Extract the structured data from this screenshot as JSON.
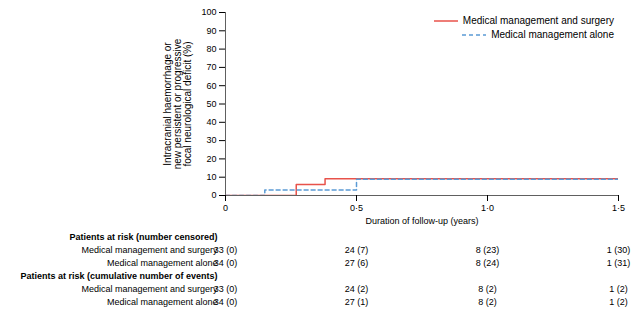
{
  "chart_data": {
    "type": "line",
    "xlabel": "Duration of follow-up (years)",
    "ylabel": "Intracranial haemorrhage or\nnew persistent or progressive\nfocal neurological deficit (%)",
    "xlim": [
      0,
      1.5
    ],
    "ylim": [
      0,
      100
    ],
    "xticks": [
      0,
      {
        "value": 0.5,
        "label": "0·5"
      },
      {
        "value": 1.0,
        "label": "1·0"
      },
      {
        "value": 1.5,
        "label": "1·5"
      }
    ],
    "yticks": [
      0,
      10,
      20,
      30,
      40,
      50,
      60,
      70,
      80,
      90,
      100
    ],
    "grid": false,
    "legend": "upper right",
    "series": [
      {
        "name": "Medical management and surgery",
        "color": "#e8524a",
        "line_style": "solid",
        "x": [
          0,
          0.27,
          0.27,
          0.38,
          0.38,
          1.5
        ],
        "values": [
          0,
          0,
          6.06,
          6.06,
          9.09,
          9.09
        ]
      },
      {
        "name": "Medical management alone",
        "color": "#5b9bd5",
        "line_style": "dashed",
        "x": [
          0,
          0.15,
          0.15,
          0.5,
          0.5,
          1.5
        ],
        "values": [
          0,
          0,
          2.94,
          2.94,
          8.82,
          8.82
        ]
      }
    ],
    "risk_tables": [
      {
        "header": "Patients at risk (number censored)",
        "rows": [
          {
            "label": "Medical management and surgery",
            "values": [
              "33 (0)",
              "24 (7)",
              "8 (23)",
              "1 (30)"
            ]
          },
          {
            "label": "Medical management alone",
            "values": [
              "34 (0)",
              "27 (6)",
              "8 (24)",
              "1 (31)"
            ]
          }
        ]
      },
      {
        "header": "Patients at risk (cumulative number of events)",
        "rows": [
          {
            "label": "Medical management and surgery",
            "values": [
              "33 (0)",
              "24 (2)",
              "8 (2)",
              "1 (2)"
            ]
          },
          {
            "label": "Medical management alone",
            "values": [
              "34 (0)",
              "27 (1)",
              "8 (2)",
              "1 (2)"
            ]
          }
        ]
      }
    ]
  }
}
